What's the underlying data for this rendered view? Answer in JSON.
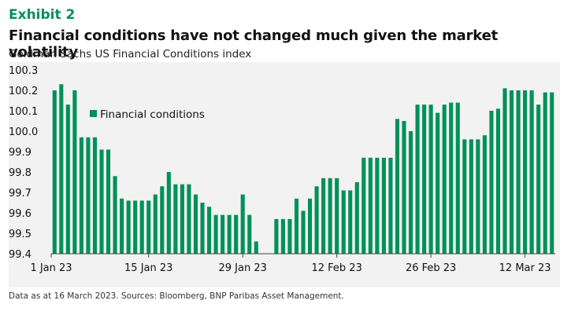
{
  "header": {
    "exhibit": "Exhibit 2",
    "title": "Financial conditions have not changed much given the market volatility",
    "subtitle": "Goldman Sachs US Financial Conditions index"
  },
  "footer": {
    "source": "Data as at 16 March 2023. Sources: Bloomberg, BNP Paribas Asset Management."
  },
  "colors": {
    "bar": "#00915a",
    "panel": "#f2f2f2"
  },
  "chart_data": {
    "type": "bar",
    "title": "",
    "xlabel": "",
    "ylabel": "",
    "ylim": [
      99.4,
      100.3
    ],
    "yticks": [
      "99.4",
      "99.5",
      "99.6",
      "99.7",
      "99.8",
      "99.9",
      "100.0",
      "100.1",
      "100.2",
      "100.3"
    ],
    "xtick_labels": [
      "1 Jan 23",
      "15 Jan 23",
      "29 Jan 23",
      "12 Feb 23",
      "26 Feb 23",
      "12 Mar 23"
    ],
    "legend": {
      "position": "top-left",
      "entries": [
        "Financial conditions"
      ]
    },
    "grid": false,
    "series": [
      {
        "name": "Financial conditions",
        "values": [
          100.2,
          100.23,
          100.13,
          100.2,
          99.97,
          99.97,
          99.97,
          99.91,
          99.91,
          99.78,
          99.67,
          99.66,
          99.66,
          99.66,
          99.66,
          99.69,
          99.73,
          99.8,
          99.74,
          99.74,
          99.74,
          99.69,
          99.65,
          99.63,
          99.59,
          99.59,
          99.59,
          99.59,
          99.69,
          99.59,
          99.46,
          null,
          null,
          99.57,
          99.57,
          99.57,
          99.67,
          99.61,
          99.67,
          99.73,
          99.77,
          99.77,
          99.77,
          99.71,
          99.71,
          99.75,
          99.87,
          99.87,
          99.87,
          99.87,
          99.87,
          100.06,
          100.05,
          100.0,
          100.13,
          100.13,
          100.13,
          100.09,
          100.13,
          100.14,
          100.14,
          99.96,
          99.96,
          99.96,
          99.98,
          100.1,
          100.11,
          100.21,
          100.2,
          100.2,
          100.2,
          100.2,
          100.13,
          100.19,
          100.19
        ]
      }
    ]
  }
}
